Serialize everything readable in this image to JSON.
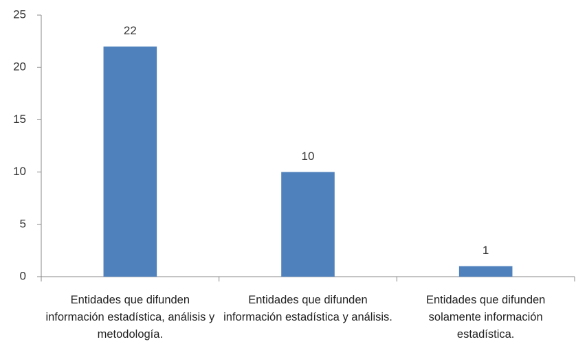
{
  "chart_data": {
    "type": "bar",
    "categories": [
      "Entidades que difunden información estadística, análisis y metodología.",
      "Entidades que difunden información estadística y análisis.",
      "Entidades que difunden solamente información estadística."
    ],
    "values": [
      22,
      10,
      1
    ],
    "color": "#4f81bd",
    "ylim": [
      0,
      25
    ],
    "yticks": [
      0,
      5,
      10,
      15,
      20,
      25
    ],
    "grid": false
  }
}
